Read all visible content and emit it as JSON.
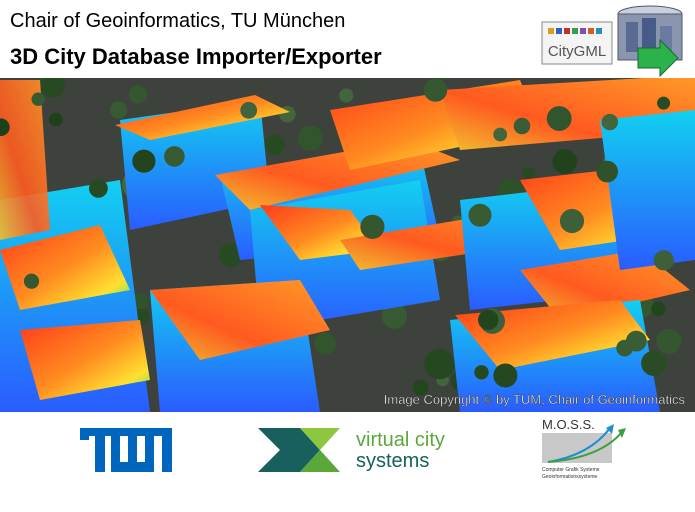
{
  "header": {
    "subtitle": "Chair of Geoinformatics, TU München",
    "title": "3D City Database Importer/Exporter",
    "logo_text": "CityGML"
  },
  "image": {
    "copyright": "Image Copyright © by TUM, Chair of Geoinformatics"
  },
  "partners": {
    "virtual_city": {
      "line1": "virtual city",
      "line2": "systems"
    },
    "moss": {
      "name": "M.O.S.S.",
      "line1": "Computer Grafik Systeme",
      "line2": "Geoinformationssysteme"
    }
  }
}
